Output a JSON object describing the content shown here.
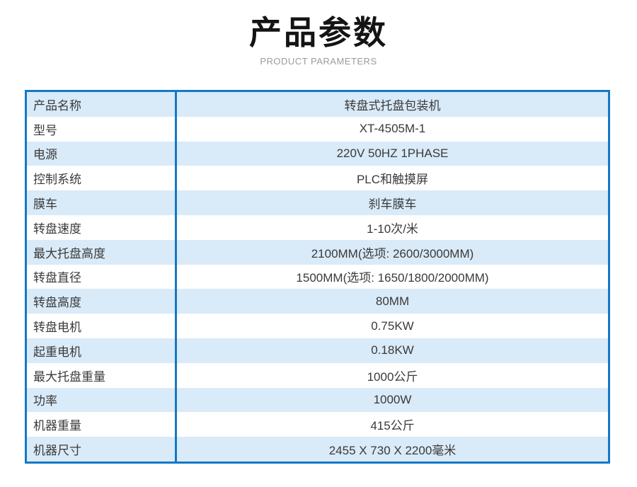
{
  "header": {
    "title": "产品参数",
    "subtitle": "PRODUCT PARAMETERS"
  },
  "colors": {
    "border_blue": "#1478c6",
    "row_blue": "#d9eaf8",
    "row_white": "#ffffff",
    "text_dark": "#3a3a3a",
    "subtitle_gray": "#9b9b9b",
    "title_black": "#141414"
  },
  "table": {
    "rows": [
      {
        "label": "产品名称",
        "value": "转盘式托盘包装机"
      },
      {
        "label": "型号",
        "value": "XT-4505M-1"
      },
      {
        "label": "电源",
        "value": "220V 50HZ 1PHASE"
      },
      {
        "label": "控制系统",
        "value": "PLC和触摸屏"
      },
      {
        "label": "膜车",
        "value": "刹车膜车"
      },
      {
        "label": "转盘速度",
        "value": "1-10次/米"
      },
      {
        "label": "最大托盘高度",
        "value": "2100MM(选项: 2600/3000MM)"
      },
      {
        "label": "转盘直径",
        "value": "1500MM(选项: 1650/1800/2000MM)"
      },
      {
        "label": "转盘高度",
        "value": "80MM"
      },
      {
        "label": "转盘电机",
        "value": "0.75KW"
      },
      {
        "label": "起重电机",
        "value": "0.18KW"
      },
      {
        "label": "最大托盘重量",
        "value": "1000公斤"
      },
      {
        "label": "功率",
        "value": "1000W"
      },
      {
        "label": "机器重量",
        "value": "415公斤"
      },
      {
        "label": "机器尺寸",
        "value": "2455 X 730 X 2200毫米"
      }
    ]
  }
}
